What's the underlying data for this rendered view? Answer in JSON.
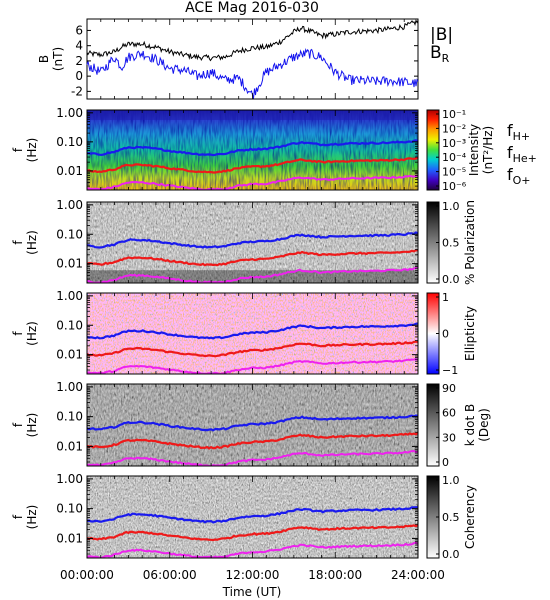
{
  "title": "ACE Mag 2016-030",
  "xlabel": "Time (UT)",
  "xticks": [
    "00:00:00",
    "06:00:00",
    "12:00:00",
    "18:00:00",
    "24:00:00"
  ],
  "colors": {
    "b_total": "#000000",
    "b_r": "#1515ee",
    "f_h": "#1a1aee",
    "f_he": "#ee1a1a",
    "f_o": "#ee22ee"
  },
  "chart_data": [
    {
      "type": "line",
      "ylabel": "B\n(nT)",
      "ylim": [
        -3,
        7.5
      ],
      "yticks": [
        "6",
        "4",
        "2",
        "0",
        "-2"
      ],
      "ytick_values": [
        6,
        4,
        2,
        0,
        -2
      ],
      "x_hours": [
        0,
        1,
        2,
        2.5,
        3,
        4,
        5,
        6,
        7,
        8,
        9,
        10,
        11,
        12,
        13,
        14,
        15,
        15.5,
        16,
        17,
        18,
        19,
        20,
        21,
        22,
        23,
        24
      ],
      "series": [
        {
          "name": "|B|",
          "values": [
            3.0,
            2.8,
            3.2,
            3.8,
            4.2,
            4.2,
            3.8,
            3.2,
            2.8,
            2.5,
            2.4,
            2.5,
            3.3,
            3.7,
            3.8,
            4.5,
            5.8,
            6.3,
            6.0,
            5.3,
            5.5,
            5.8,
            5.9,
            6.0,
            6.2,
            6.5,
            7.2
          ]
        },
        {
          "name": "B",
          "sub": "R",
          "values": [
            1.5,
            0.5,
            2.5,
            1.2,
            2.5,
            3.0,
            2.2,
            1.0,
            0.8,
            0.0,
            0.5,
            -0.5,
            -0.3,
            -2.5,
            0.5,
            1.5,
            2.5,
            2.8,
            3.0,
            2.5,
            0.5,
            -0.5,
            -0.6,
            -0.7,
            -0.6,
            -0.8,
            -1.0
          ]
        }
      ],
      "legend": [
        "|B|",
        "B_R"
      ]
    },
    {
      "type": "heatmap",
      "ylabel": "f\n(Hz)",
      "yticks": [
        "1.00",
        "0.10",
        "0.01"
      ],
      "colorbar_label": "Intensity\n(nT²/Hz)",
      "colorbar_ticks": [
        "10⁻¹",
        "10⁻²",
        "10⁻³",
        "10⁻⁴",
        "10⁻⁵",
        "10⁻⁶"
      ],
      "colorbar": "rainbow",
      "gyro_labels": [
        {
          "base": "f",
          "sub": "H+"
        },
        {
          "base": "f",
          "sub": "He+"
        },
        {
          "base": "f",
          "sub": "O+"
        }
      ]
    },
    {
      "type": "heatmap",
      "ylabel": "f\n(Hz)",
      "yticks": [
        "1.00",
        "0.10",
        "0.01"
      ],
      "colorbar_label": "% Polarization",
      "colorbar_ticks": [
        "1.0",
        "0.5",
        "0.0"
      ],
      "colorbar": "gray"
    },
    {
      "type": "heatmap",
      "ylabel": "f\n(Hz)",
      "yticks": [
        "1.00",
        "0.10",
        "0.01"
      ],
      "colorbar_label": "Ellipticity",
      "colorbar_ticks": [
        "1",
        "0",
        "−1"
      ],
      "colorbar": "bwr"
    },
    {
      "type": "heatmap",
      "ylabel": "f\n(Hz)",
      "yticks": [
        "1.00",
        "0.10",
        "0.01"
      ],
      "colorbar_label": "k dot B\n(Deg)",
      "colorbar_ticks": [
        "90",
        "60",
        "30",
        "0"
      ],
      "colorbar": "gray"
    },
    {
      "type": "heatmap",
      "ylabel": "f\n(Hz)",
      "yticks": [
        "1.00",
        "0.10",
        "0.01"
      ],
      "colorbar_label": "Coherency",
      "colorbar_ticks": [
        "1.0",
        "0.5",
        "0.0"
      ],
      "colorbar": "gray"
    }
  ],
  "gyrofrequency_hz": {
    "x_hours": [
      0,
      1,
      2,
      2.5,
      3,
      4,
      5,
      6,
      7,
      8,
      9,
      10,
      11,
      12,
      13,
      14,
      15,
      15.5,
      16,
      17,
      18,
      19,
      20,
      21,
      22,
      23,
      24
    ],
    "f_h": [
      0.04,
      0.037,
      0.045,
      0.055,
      0.064,
      0.064,
      0.058,
      0.049,
      0.043,
      0.038,
      0.036,
      0.039,
      0.05,
      0.056,
      0.058,
      0.068,
      0.088,
      0.095,
      0.091,
      0.08,
      0.084,
      0.088,
      0.09,
      0.091,
      0.094,
      0.099,
      0.11
    ],
    "f_he": [
      0.01,
      0.0093,
      0.0113,
      0.0138,
      0.016,
      0.016,
      0.0145,
      0.0123,
      0.0108,
      0.0095,
      0.009,
      0.0098,
      0.0125,
      0.014,
      0.0145,
      0.017,
      0.022,
      0.0238,
      0.0228,
      0.02,
      0.021,
      0.022,
      0.0225,
      0.0228,
      0.0235,
      0.0248,
      0.0275
    ],
    "f_o": [
      0.0025,
      0.0023,
      0.0028,
      0.0034,
      0.004,
      0.004,
      0.0036,
      0.0031,
      0.0027,
      0.0024,
      0.0023,
      0.0024,
      0.0031,
      0.0035,
      0.0036,
      0.0043,
      0.0055,
      0.0059,
      0.0057,
      0.005,
      0.0052,
      0.0055,
      0.0056,
      0.0057,
      0.0059,
      0.0062,
      0.0069
    ]
  }
}
